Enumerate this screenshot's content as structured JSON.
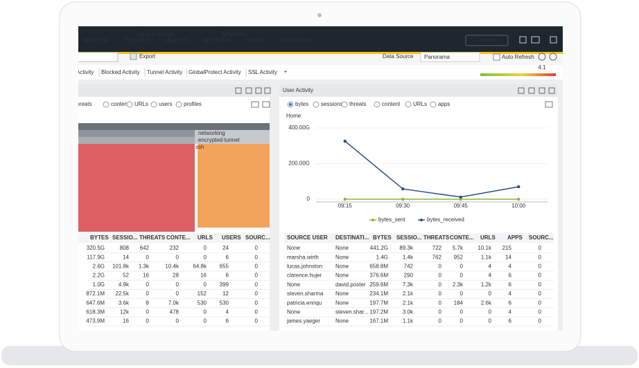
{
  "nav": {
    "items": [
      "MONITOR",
      "POLICIES",
      "OBJECTS",
      "NETWORK",
      "DEVICE",
      "PANORAMA"
    ],
    "groups": [
      "Device Groups",
      "Templates"
    ],
    "commit": "Commit"
  },
  "toolbar": {
    "export": "Export",
    "data_source_label": "Data Source",
    "data_source": "Panorama",
    "auto_refresh": "Auto Refresh"
  },
  "tabs": {
    "items": [
      "Activity",
      "Blocked Activity",
      "Tunnel Activity",
      "GlobalProtect Activity",
      "SSL Activity"
    ],
    "add": "+",
    "gauge": "4.1"
  },
  "left_panel": {
    "filters": [
      "threats",
      "content",
      "URLs",
      "users",
      "profiles"
    ],
    "treemap": [
      "networking",
      "encrypted-tunnel",
      "ssh"
    ],
    "table": {
      "headers": [
        "BYTES",
        "SESSIO...",
        "THREATS",
        "CONTE...",
        "URLS",
        "USERS",
        "SOURC..."
      ],
      "rows": [
        [
          "320.5G",
          "808",
          "642",
          "232",
          "0",
          "24",
          "0"
        ],
        [
          "117.9G",
          "14",
          "0",
          "0",
          "0",
          "6",
          "0"
        ],
        [
          "2.6G",
          "101.8k",
          "1.3k",
          "10.4k",
          "64.8k",
          "655",
          "0"
        ],
        [
          "2.2G",
          "52",
          "16",
          "28",
          "16",
          "6",
          "0"
        ],
        [
          "1.0G",
          "4.9k",
          "0",
          "0",
          "0",
          "399",
          "0"
        ],
        [
          "872.1M",
          "22.5k",
          "0",
          "0",
          "152",
          "12",
          "0"
        ],
        [
          "647.6M",
          "3.6k",
          "8",
          "7.0k",
          "530",
          "530",
          "0"
        ],
        [
          "618.3M",
          "12k",
          "0",
          "478",
          "0",
          "4",
          "0"
        ],
        [
          "473.9M",
          "16",
          "0",
          "0",
          "0",
          "6",
          "0"
        ]
      ]
    }
  },
  "right_panel": {
    "title": "User Activity",
    "filters": [
      "bytes",
      "sessions",
      "threats",
      "content",
      "URLs",
      "apps"
    ],
    "breadcrumb": "Home",
    "chart_data": {
      "type": "line",
      "categories": [
        "09:15",
        "09:30",
        "09:45",
        "10:00"
      ],
      "series": [
        {
          "name": "bytes_sent",
          "color": "#8ab833",
          "values": [
            0,
            0,
            0,
            0
          ]
        },
        {
          "name": "bytes_received",
          "color": "#2d4e7e",
          "values": [
            326,
            58,
            12,
            70
          ]
        }
      ],
      "ylim": [
        0,
        450
      ],
      "yticks": [
        0,
        {
          "value": 200,
          "label": "200.00G"
        },
        {
          "value": 400,
          "label": "400.00G"
        }
      ],
      "grid": true
    },
    "table": {
      "headers": [
        "SOURCE USER",
        "DESTINATI...",
        "BYTES",
        "SESSIO...",
        "THREATS",
        "CONTE...",
        "URLS",
        "APPS",
        "SOURC..."
      ],
      "rows": [
        [
          "None",
          "None",
          "441.2G",
          "89.3k",
          "722",
          "5.7k",
          "10.1k",
          "215",
          "0"
        ],
        [
          "marsha.wirth",
          "None",
          "1.4G",
          "1.4k",
          "762",
          "952",
          "1.1k",
          "14",
          "0"
        ],
        [
          "lucas.johnston",
          "None",
          "658.8M",
          "742",
          "0",
          "0",
          "4",
          "4",
          "0"
        ],
        [
          "clarence.hujer",
          "None",
          "376.6M",
          "290",
          "0",
          "0",
          "4",
          "6",
          "0"
        ],
        [
          "None",
          "david.poster",
          "259.6M",
          "7.3k",
          "0",
          "2.3k",
          "1.2k",
          "6",
          "0"
        ],
        [
          "steven.sharma",
          "None",
          "234.1M",
          "2.1k",
          "0",
          "0",
          "0",
          "4",
          "0"
        ],
        [
          "patricia.enriqu",
          "None",
          "197.7M",
          "2.1k",
          "0",
          "184",
          "2.6k",
          "6",
          "0"
        ],
        [
          "None",
          "steven.shar...",
          "197.2M",
          "3.0k",
          "0",
          "0",
          "0",
          "4",
          "0"
        ],
        [
          "james.yaeger",
          "None",
          "167.1M",
          "1.1k",
          "0",
          "0",
          "0",
          "6",
          "0"
        ]
      ]
    }
  }
}
